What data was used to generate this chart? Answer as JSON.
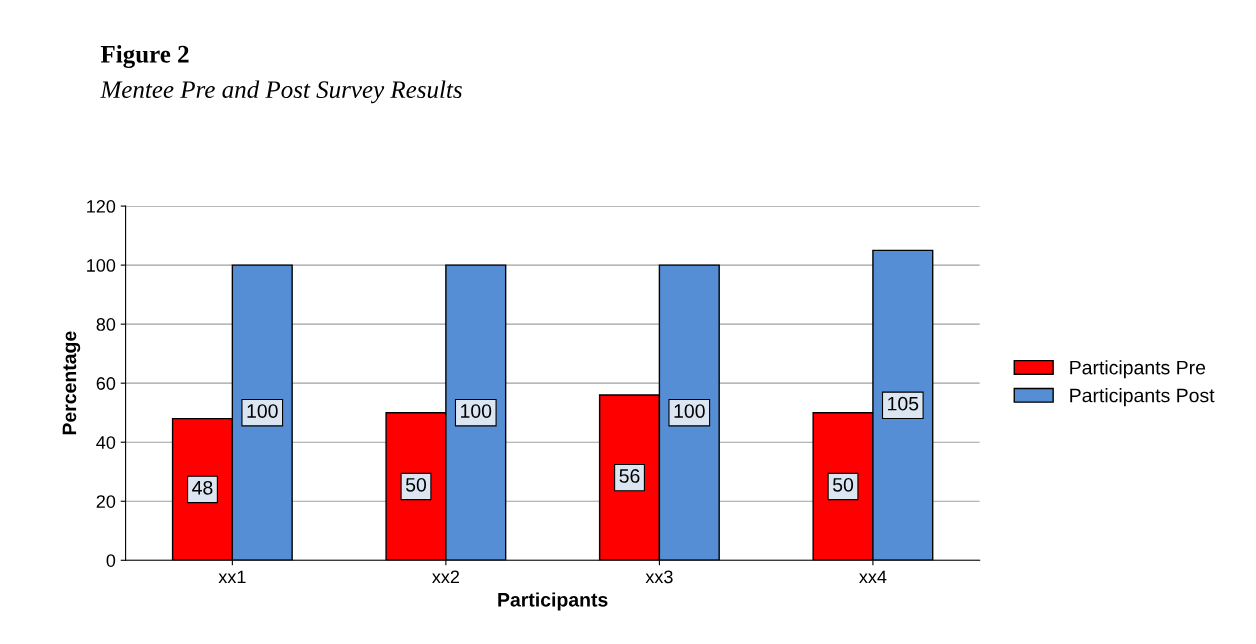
{
  "chart_data": {
    "type": "bar",
    "title": "Figure 2",
    "subtitle": "Mentee Pre and Post Survey Results",
    "xlabel": "Participants",
    "ylabel": "Percentage",
    "categories": [
      "xx1",
      "xx2",
      "xx3",
      "xx4"
    ],
    "series": [
      {
        "name": "Participants Pre",
        "color": "#ff0000",
        "values": [
          48,
          50,
          56,
          50
        ]
      },
      {
        "name": "Participants Post",
        "color": "#558ed5",
        "values": [
          100,
          100,
          100,
          105
        ]
      }
    ],
    "ylim": [
      0,
      120
    ],
    "yticks": [
      0,
      20,
      40,
      60,
      80,
      100,
      120
    ],
    "grid": "y",
    "legend": "right",
    "data_labels": true
  }
}
